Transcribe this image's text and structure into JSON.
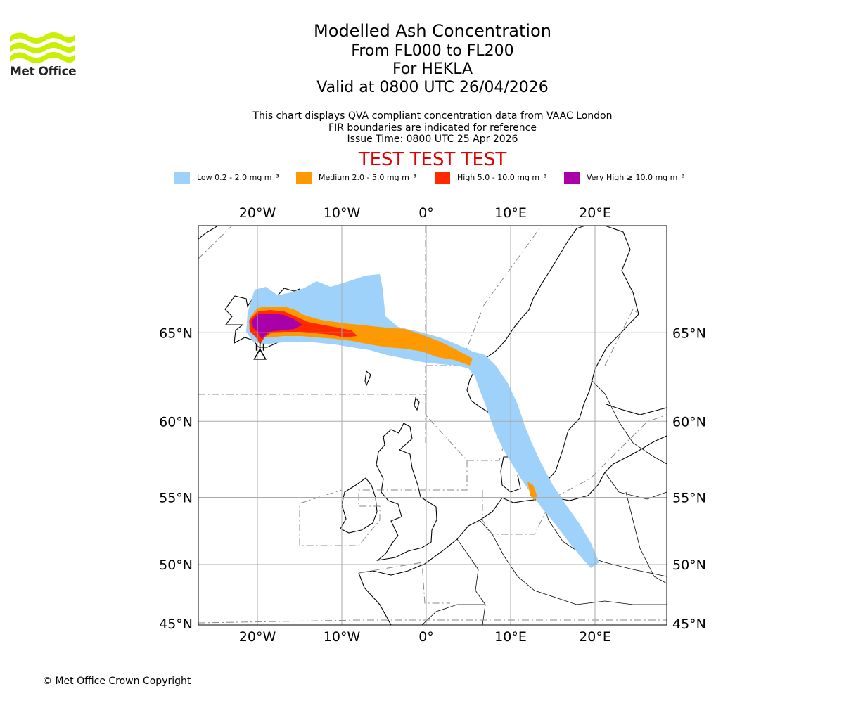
{
  "logo": {
    "text": "Met Office"
  },
  "title": {
    "main": "Modelled Ash Concentration",
    "line2": "From FL000 to FL200",
    "line3": "For HEKLA",
    "line4": "Valid at 0800 UTC 26/04/2026"
  },
  "description": {
    "line1": "This chart displays QVA compliant concentration data from VAAC London",
    "line2": "FIR boundaries are indicated for reference",
    "line3": "Issue Time: 0800 UTC 25 Apr 2026"
  },
  "watermark": "TEST TEST TEST",
  "legend": [
    {
      "label": "Low 0.2 - 2.0 mg m⁻³",
      "color": "#9fd2fb"
    },
    {
      "label": "Medium 2.0 - 5.0 mg m⁻³",
      "color": "#ff9900"
    },
    {
      "label": "High 5.0 - 10.0 mg m⁻³",
      "color": "#ff2a00"
    },
    {
      "label": "Very High ≥ 10.0 mg m⁻³",
      "color": "#aa00aa"
    }
  ],
  "map": {
    "lon_range": [
      -27,
      28.5
    ],
    "lat_range": [
      45,
      70
    ],
    "lon_ticks": [
      -20,
      -10,
      0,
      10,
      20
    ],
    "lon_tick_labels": [
      "20°W",
      "10°W",
      "0°",
      "10°E",
      "20°E"
    ],
    "lat_ticks": [
      45,
      50,
      55,
      60,
      65
    ],
    "lat_tick_labels": [
      "45°N",
      "50°N",
      "55°N",
      "60°N",
      "65°N"
    ],
    "volcano": {
      "name": "HEKLA",
      "lon": -19.7,
      "lat": 63.98
    },
    "gridline_color": "#aaaaaa"
  },
  "copyright": "© Met Office Crown Copyright"
}
